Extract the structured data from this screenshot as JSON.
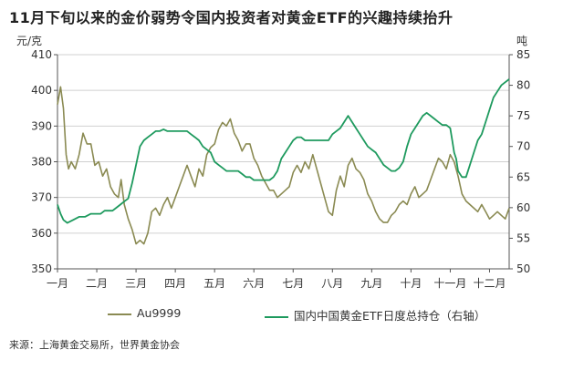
{
  "header": {
    "title": "11月下旬以来的金价弱势令国内投资者对黄金ETF的兴趣持续抬升"
  },
  "footer": {
    "source": "来源：上海黄金交易所，世界黄金协会"
  },
  "colors": {
    "au": "#8a8a52",
    "etf": "#1e9a5e",
    "grid": "#d0d0d0",
    "axis": "#555555"
  },
  "chart_data": {
    "type": "line",
    "title": "11月下旬以来的金价弱势令国内投资者对黄金ETF的兴趣持续抬升",
    "categories": [
      "一月",
      "二月",
      "三月",
      "四月",
      "五月",
      "六月",
      "七月",
      "八月",
      "九月",
      "十月",
      "十一月",
      "十二月"
    ],
    "x_range": [
      0,
      11.5
    ],
    "left_axis": {
      "unit": "元/克",
      "ylim": [
        350,
        410
      ],
      "ticks": [
        350,
        360,
        370,
        380,
        390,
        400,
        410
      ]
    },
    "right_axis": {
      "unit": "吨",
      "ylim": [
        50,
        85
      ],
      "ticks": [
        50,
        55,
        60,
        65,
        70,
        75,
        80,
        85
      ]
    },
    "grid": true,
    "legend_position": "bottom",
    "series": [
      {
        "name": "Au9999",
        "axis": "left",
        "color": "#8a8a52",
        "points": [
          [
            0.0,
            396
          ],
          [
            0.08,
            401
          ],
          [
            0.15,
            395
          ],
          [
            0.22,
            382
          ],
          [
            0.28,
            378
          ],
          [
            0.35,
            380
          ],
          [
            0.45,
            378
          ],
          [
            0.55,
            382
          ],
          [
            0.65,
            388
          ],
          [
            0.75,
            385
          ],
          [
            0.85,
            385
          ],
          [
            0.95,
            379
          ],
          [
            1.05,
            380
          ],
          [
            1.15,
            376
          ],
          [
            1.25,
            378
          ],
          [
            1.35,
            373
          ],
          [
            1.45,
            371
          ],
          [
            1.55,
            370
          ],
          [
            1.62,
            375
          ],
          [
            1.7,
            368
          ],
          [
            1.8,
            364
          ],
          [
            1.9,
            361
          ],
          [
            2.0,
            357
          ],
          [
            2.1,
            358
          ],
          [
            2.2,
            357
          ],
          [
            2.3,
            360
          ],
          [
            2.4,
            366
          ],
          [
            2.5,
            367
          ],
          [
            2.6,
            365
          ],
          [
            2.7,
            368
          ],
          [
            2.8,
            370
          ],
          [
            2.9,
            367
          ],
          [
            3.0,
            370
          ],
          [
            3.1,
            373
          ],
          [
            3.2,
            376
          ],
          [
            3.3,
            379
          ],
          [
            3.4,
            376
          ],
          [
            3.5,
            373
          ],
          [
            3.6,
            378
          ],
          [
            3.7,
            376
          ],
          [
            3.8,
            382
          ],
          [
            3.9,
            384
          ],
          [
            4.0,
            385
          ],
          [
            4.1,
            389
          ],
          [
            4.2,
            391
          ],
          [
            4.3,
            390
          ],
          [
            4.4,
            392
          ],
          [
            4.5,
            388
          ],
          [
            4.6,
            386
          ],
          [
            4.7,
            383
          ],
          [
            4.8,
            385
          ],
          [
            4.9,
            385
          ],
          [
            5.0,
            381
          ],
          [
            5.1,
            379
          ],
          [
            5.2,
            376
          ],
          [
            5.3,
            374
          ],
          [
            5.4,
            372
          ],
          [
            5.5,
            372
          ],
          [
            5.6,
            370
          ],
          [
            5.7,
            371
          ],
          [
            5.8,
            372
          ],
          [
            5.9,
            373
          ],
          [
            6.0,
            377
          ],
          [
            6.1,
            379
          ],
          [
            6.2,
            377
          ],
          [
            6.3,
            380
          ],
          [
            6.4,
            378
          ],
          [
            6.5,
            382
          ],
          [
            6.6,
            378
          ],
          [
            6.7,
            374
          ],
          [
            6.8,
            370
          ],
          [
            6.9,
            366
          ],
          [
            7.0,
            365
          ],
          [
            7.1,
            372
          ],
          [
            7.2,
            376
          ],
          [
            7.3,
            373
          ],
          [
            7.4,
            379
          ],
          [
            7.5,
            381
          ],
          [
            7.6,
            378
          ],
          [
            7.7,
            377
          ],
          [
            7.8,
            375
          ],
          [
            7.9,
            371
          ],
          [
            8.0,
            369
          ],
          [
            8.1,
            366
          ],
          [
            8.2,
            364
          ],
          [
            8.3,
            363
          ],
          [
            8.4,
            363
          ],
          [
            8.5,
            365
          ],
          [
            8.6,
            366
          ],
          [
            8.7,
            368
          ],
          [
            8.8,
            369
          ],
          [
            8.9,
            368
          ],
          [
            9.0,
            371
          ],
          [
            9.1,
            373
          ],
          [
            9.2,
            370
          ],
          [
            9.3,
            371
          ],
          [
            9.4,
            372
          ],
          [
            9.5,
            375
          ],
          [
            9.6,
            378
          ],
          [
            9.7,
            381
          ],
          [
            9.8,
            380
          ],
          [
            9.9,
            378
          ],
          [
            10.0,
            382
          ],
          [
            10.1,
            380
          ],
          [
            10.2,
            376
          ],
          [
            10.3,
            371
          ],
          [
            10.4,
            369
          ],
          [
            10.5,
            368
          ],
          [
            10.6,
            367
          ],
          [
            10.7,
            366
          ],
          [
            10.8,
            368
          ],
          [
            10.9,
            366
          ],
          [
            11.0,
            364
          ],
          [
            11.1,
            365
          ],
          [
            11.2,
            366
          ],
          [
            11.3,
            365
          ],
          [
            11.4,
            364
          ],
          [
            11.5,
            367
          ]
        ]
      },
      {
        "name": "国内中国黄金ETF日度总持仓（右轴）",
        "axis": "right",
        "color": "#1e9a5e",
        "points": [
          [
            0.0,
            60.5
          ],
          [
            0.08,
            59
          ],
          [
            0.15,
            58
          ],
          [
            0.25,
            57.5
          ],
          [
            0.4,
            58
          ],
          [
            0.55,
            58.5
          ],
          [
            0.7,
            58.5
          ],
          [
            0.85,
            59
          ],
          [
            1.0,
            59
          ],
          [
            1.1,
            59
          ],
          [
            1.2,
            59.5
          ],
          [
            1.3,
            59.5
          ],
          [
            1.4,
            59.5
          ],
          [
            1.5,
            60
          ],
          [
            1.6,
            60.5
          ],
          [
            1.7,
            61
          ],
          [
            1.8,
            61.5
          ],
          [
            1.9,
            64
          ],
          [
            2.0,
            67
          ],
          [
            2.1,
            70
          ],
          [
            2.2,
            71
          ],
          [
            2.3,
            71.5
          ],
          [
            2.4,
            72
          ],
          [
            2.5,
            72.5
          ],
          [
            2.6,
            72.5
          ],
          [
            2.7,
            72.8
          ],
          [
            2.8,
            72.5
          ],
          [
            2.9,
            72.5
          ],
          [
            3.0,
            72.5
          ],
          [
            3.1,
            72.5
          ],
          [
            3.2,
            72.5
          ],
          [
            3.3,
            72.5
          ],
          [
            3.4,
            72
          ],
          [
            3.5,
            71.5
          ],
          [
            3.6,
            71
          ],
          [
            3.7,
            70
          ],
          [
            3.8,
            69.5
          ],
          [
            3.9,
            69
          ],
          [
            4.0,
            67.5
          ],
          [
            4.1,
            67
          ],
          [
            4.2,
            66.5
          ],
          [
            4.3,
            66
          ],
          [
            4.4,
            66
          ],
          [
            4.5,
            66
          ],
          [
            4.6,
            66
          ],
          [
            4.7,
            65.5
          ],
          [
            4.8,
            65
          ],
          [
            4.9,
            65
          ],
          [
            5.0,
            64.5
          ],
          [
            5.1,
            64.5
          ],
          [
            5.2,
            64.5
          ],
          [
            5.3,
            64.5
          ],
          [
            5.4,
            64.5
          ],
          [
            5.5,
            65
          ],
          [
            5.6,
            66
          ],
          [
            5.7,
            68
          ],
          [
            5.8,
            69
          ],
          [
            5.9,
            70
          ],
          [
            6.0,
            71
          ],
          [
            6.1,
            71.5
          ],
          [
            6.2,
            71.5
          ],
          [
            6.3,
            71
          ],
          [
            6.4,
            71
          ],
          [
            6.5,
            71
          ],
          [
            6.6,
            71
          ],
          [
            6.7,
            71
          ],
          [
            6.8,
            71
          ],
          [
            6.9,
            71
          ],
          [
            7.0,
            72
          ],
          [
            7.1,
            72.5
          ],
          [
            7.2,
            73
          ],
          [
            7.3,
            74
          ],
          [
            7.4,
            75
          ],
          [
            7.5,
            74
          ],
          [
            7.6,
            73
          ],
          [
            7.7,
            72
          ],
          [
            7.8,
            71
          ],
          [
            7.9,
            70
          ],
          [
            8.0,
            69.5
          ],
          [
            8.1,
            69
          ],
          [
            8.2,
            68
          ],
          [
            8.3,
            67
          ],
          [
            8.4,
            66.5
          ],
          [
            8.5,
            66
          ],
          [
            8.6,
            66
          ],
          [
            8.7,
            66.5
          ],
          [
            8.8,
            67.5
          ],
          [
            8.9,
            70
          ],
          [
            9.0,
            72
          ],
          [
            9.1,
            73
          ],
          [
            9.2,
            74
          ],
          [
            9.3,
            75
          ],
          [
            9.4,
            75.5
          ],
          [
            9.5,
            75
          ],
          [
            9.6,
            74.5
          ],
          [
            9.7,
            74
          ],
          [
            9.8,
            73.5
          ],
          [
            9.9,
            73.5
          ],
          [
            10.0,
            73
          ],
          [
            10.05,
            71
          ],
          [
            10.1,
            69
          ],
          [
            10.15,
            68
          ],
          [
            10.2,
            66
          ],
          [
            10.3,
            65
          ],
          [
            10.4,
            65
          ],
          [
            10.5,
            67
          ],
          [
            10.6,
            69
          ],
          [
            10.7,
            71
          ],
          [
            10.8,
            72
          ],
          [
            10.9,
            74
          ],
          [
            11.0,
            76
          ],
          [
            11.1,
            78
          ],
          [
            11.2,
            79
          ],
          [
            11.3,
            80
          ],
          [
            11.4,
            80.5
          ],
          [
            11.5,
            81
          ]
        ]
      }
    ]
  }
}
